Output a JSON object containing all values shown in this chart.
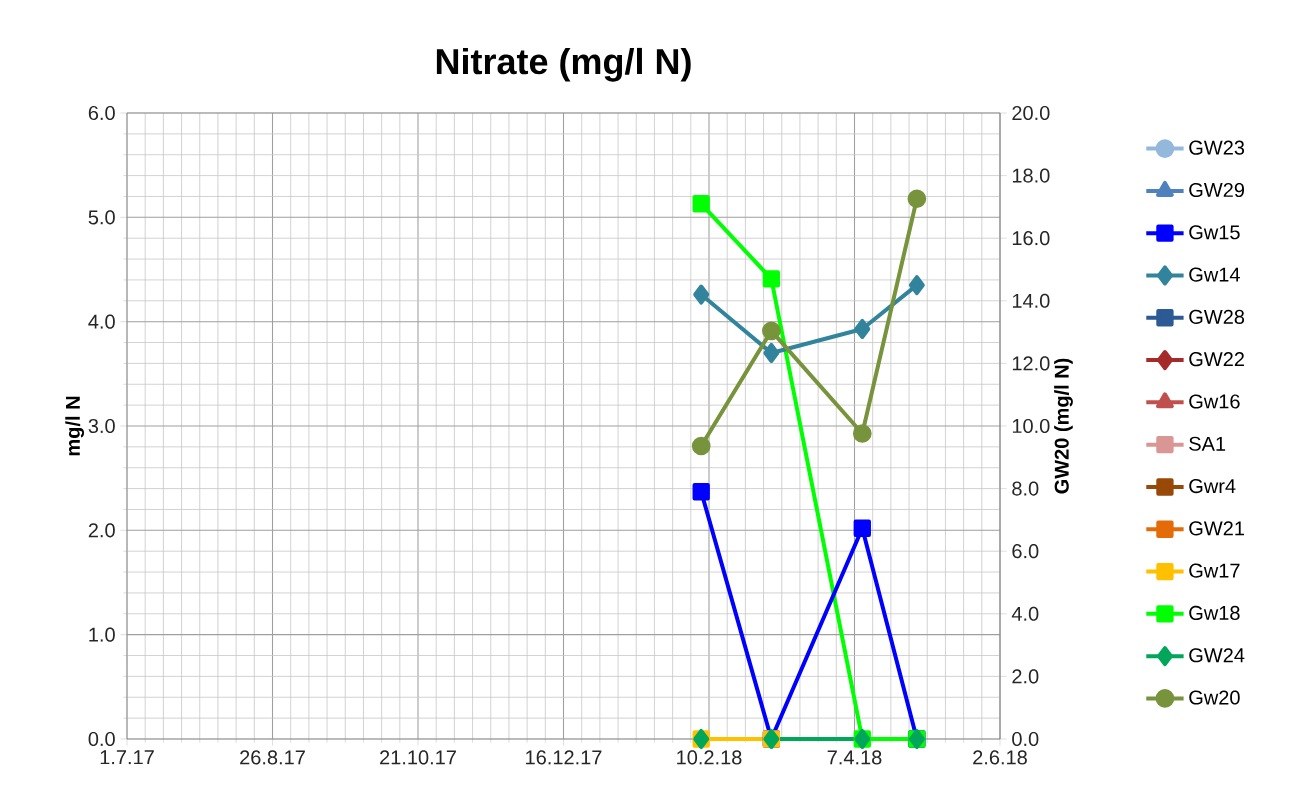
{
  "chart_data": {
    "type": "line",
    "title": "Nitrate (mg/l N)",
    "ylabel": "mg/l N",
    "y2label": "GW20 (mg/l N)",
    "x": [
      "2018-02-07",
      "2018-03-06",
      "2018-04-10",
      "2018-05-01"
    ],
    "xlim": [
      "2017-07-01",
      "2018-06-02"
    ],
    "xticks": [
      {
        "value": "2017-07-01",
        "label": "1.7.17"
      },
      {
        "value": "2017-08-26",
        "label": "26.8.17"
      },
      {
        "value": "2017-10-21",
        "label": "21.10.17"
      },
      {
        "value": "2017-12-16",
        "label": "16.12.17"
      },
      {
        "value": "2018-02-10",
        "label": "10.2.18"
      },
      {
        "value": "2018-04-07",
        "label": "7.4.18"
      },
      {
        "value": "2018-06-02",
        "label": "2.6.18"
      }
    ],
    "ylim": [
      0,
      6
    ],
    "yticks": [
      {
        "value": 0,
        "label": "0.0"
      },
      {
        "value": 1,
        "label": "1.0"
      },
      {
        "value": 2,
        "label": "2.0"
      },
      {
        "value": 3,
        "label": "3.0"
      },
      {
        "value": 4,
        "label": "4.0"
      },
      {
        "value": 5,
        "label": "5.0"
      },
      {
        "value": 6,
        "label": "6.0"
      }
    ],
    "y2lim": [
      0,
      20
    ],
    "y2ticks": [
      {
        "value": 0,
        "label": "0.0"
      },
      {
        "value": 2,
        "label": "2.0"
      },
      {
        "value": 4,
        "label": "4.0"
      },
      {
        "value": 6,
        "label": "6.0"
      },
      {
        "value": 8,
        "label": "8.0"
      },
      {
        "value": 10,
        "label": "10.0"
      },
      {
        "value": 12,
        "label": "12.0"
      },
      {
        "value": 14,
        "label": "14.0"
      },
      {
        "value": 16,
        "label": "16.0"
      },
      {
        "value": 18,
        "label": "18.0"
      },
      {
        "value": 20,
        "label": "20.0"
      }
    ],
    "grid": true,
    "legend": "right",
    "series": [
      {
        "name": "GW23",
        "color": "#93b8dc",
        "marker": "circle",
        "values": [
          null,
          null,
          null,
          null
        ]
      },
      {
        "name": "GW29",
        "color": "#4f81bd",
        "marker": "triangle",
        "values": [
          null,
          null,
          null,
          null
        ]
      },
      {
        "name": "Gw15",
        "color": "#0000ff",
        "marker": "square",
        "values": [
          2.37,
          0,
          2.02,
          0
        ]
      },
      {
        "name": "Gw14",
        "color": "#31849b",
        "marker": "diamond",
        "values": [
          4.26,
          3.7,
          3.93,
          4.35
        ]
      },
      {
        "name": "GW28",
        "color": "#2c5a95",
        "marker": "square",
        "values": [
          null,
          null,
          null,
          null
        ]
      },
      {
        "name": "GW22",
        "color": "#a52a2a",
        "marker": "diamond",
        "values": [
          null,
          null,
          null,
          null
        ]
      },
      {
        "name": "Gw16",
        "color": "#c0504d",
        "marker": "triangle",
        "values": [
          null,
          null,
          null,
          null
        ]
      },
      {
        "name": "SA1",
        "color": "#d99694",
        "marker": "square",
        "values": [
          null,
          null,
          null,
          null
        ]
      },
      {
        "name": "Gwr4",
        "color": "#984807",
        "marker": "square",
        "values": [
          null,
          null,
          null,
          null
        ]
      },
      {
        "name": "GW21",
        "color": "#e36c09",
        "marker": "square",
        "values": [
          null,
          null,
          null,
          null
        ]
      },
      {
        "name": "Gw17",
        "color": "#ffc000",
        "marker": "square",
        "values": [
          0,
          0,
          null,
          null
        ]
      },
      {
        "name": "Gw18",
        "color": "#00ff00",
        "marker": "square",
        "values": [
          5.13,
          4.41,
          0,
          0
        ]
      },
      {
        "name": "GW24",
        "color": "#00a65a",
        "marker": "diamond",
        "values": [
          0,
          0,
          0,
          0
        ]
      },
      {
        "name": "Gw20",
        "color": "#77933c",
        "marker": "circle",
        "axis": "y2",
        "values": [
          9.36,
          13.04,
          9.76,
          17.26
        ]
      }
    ]
  }
}
